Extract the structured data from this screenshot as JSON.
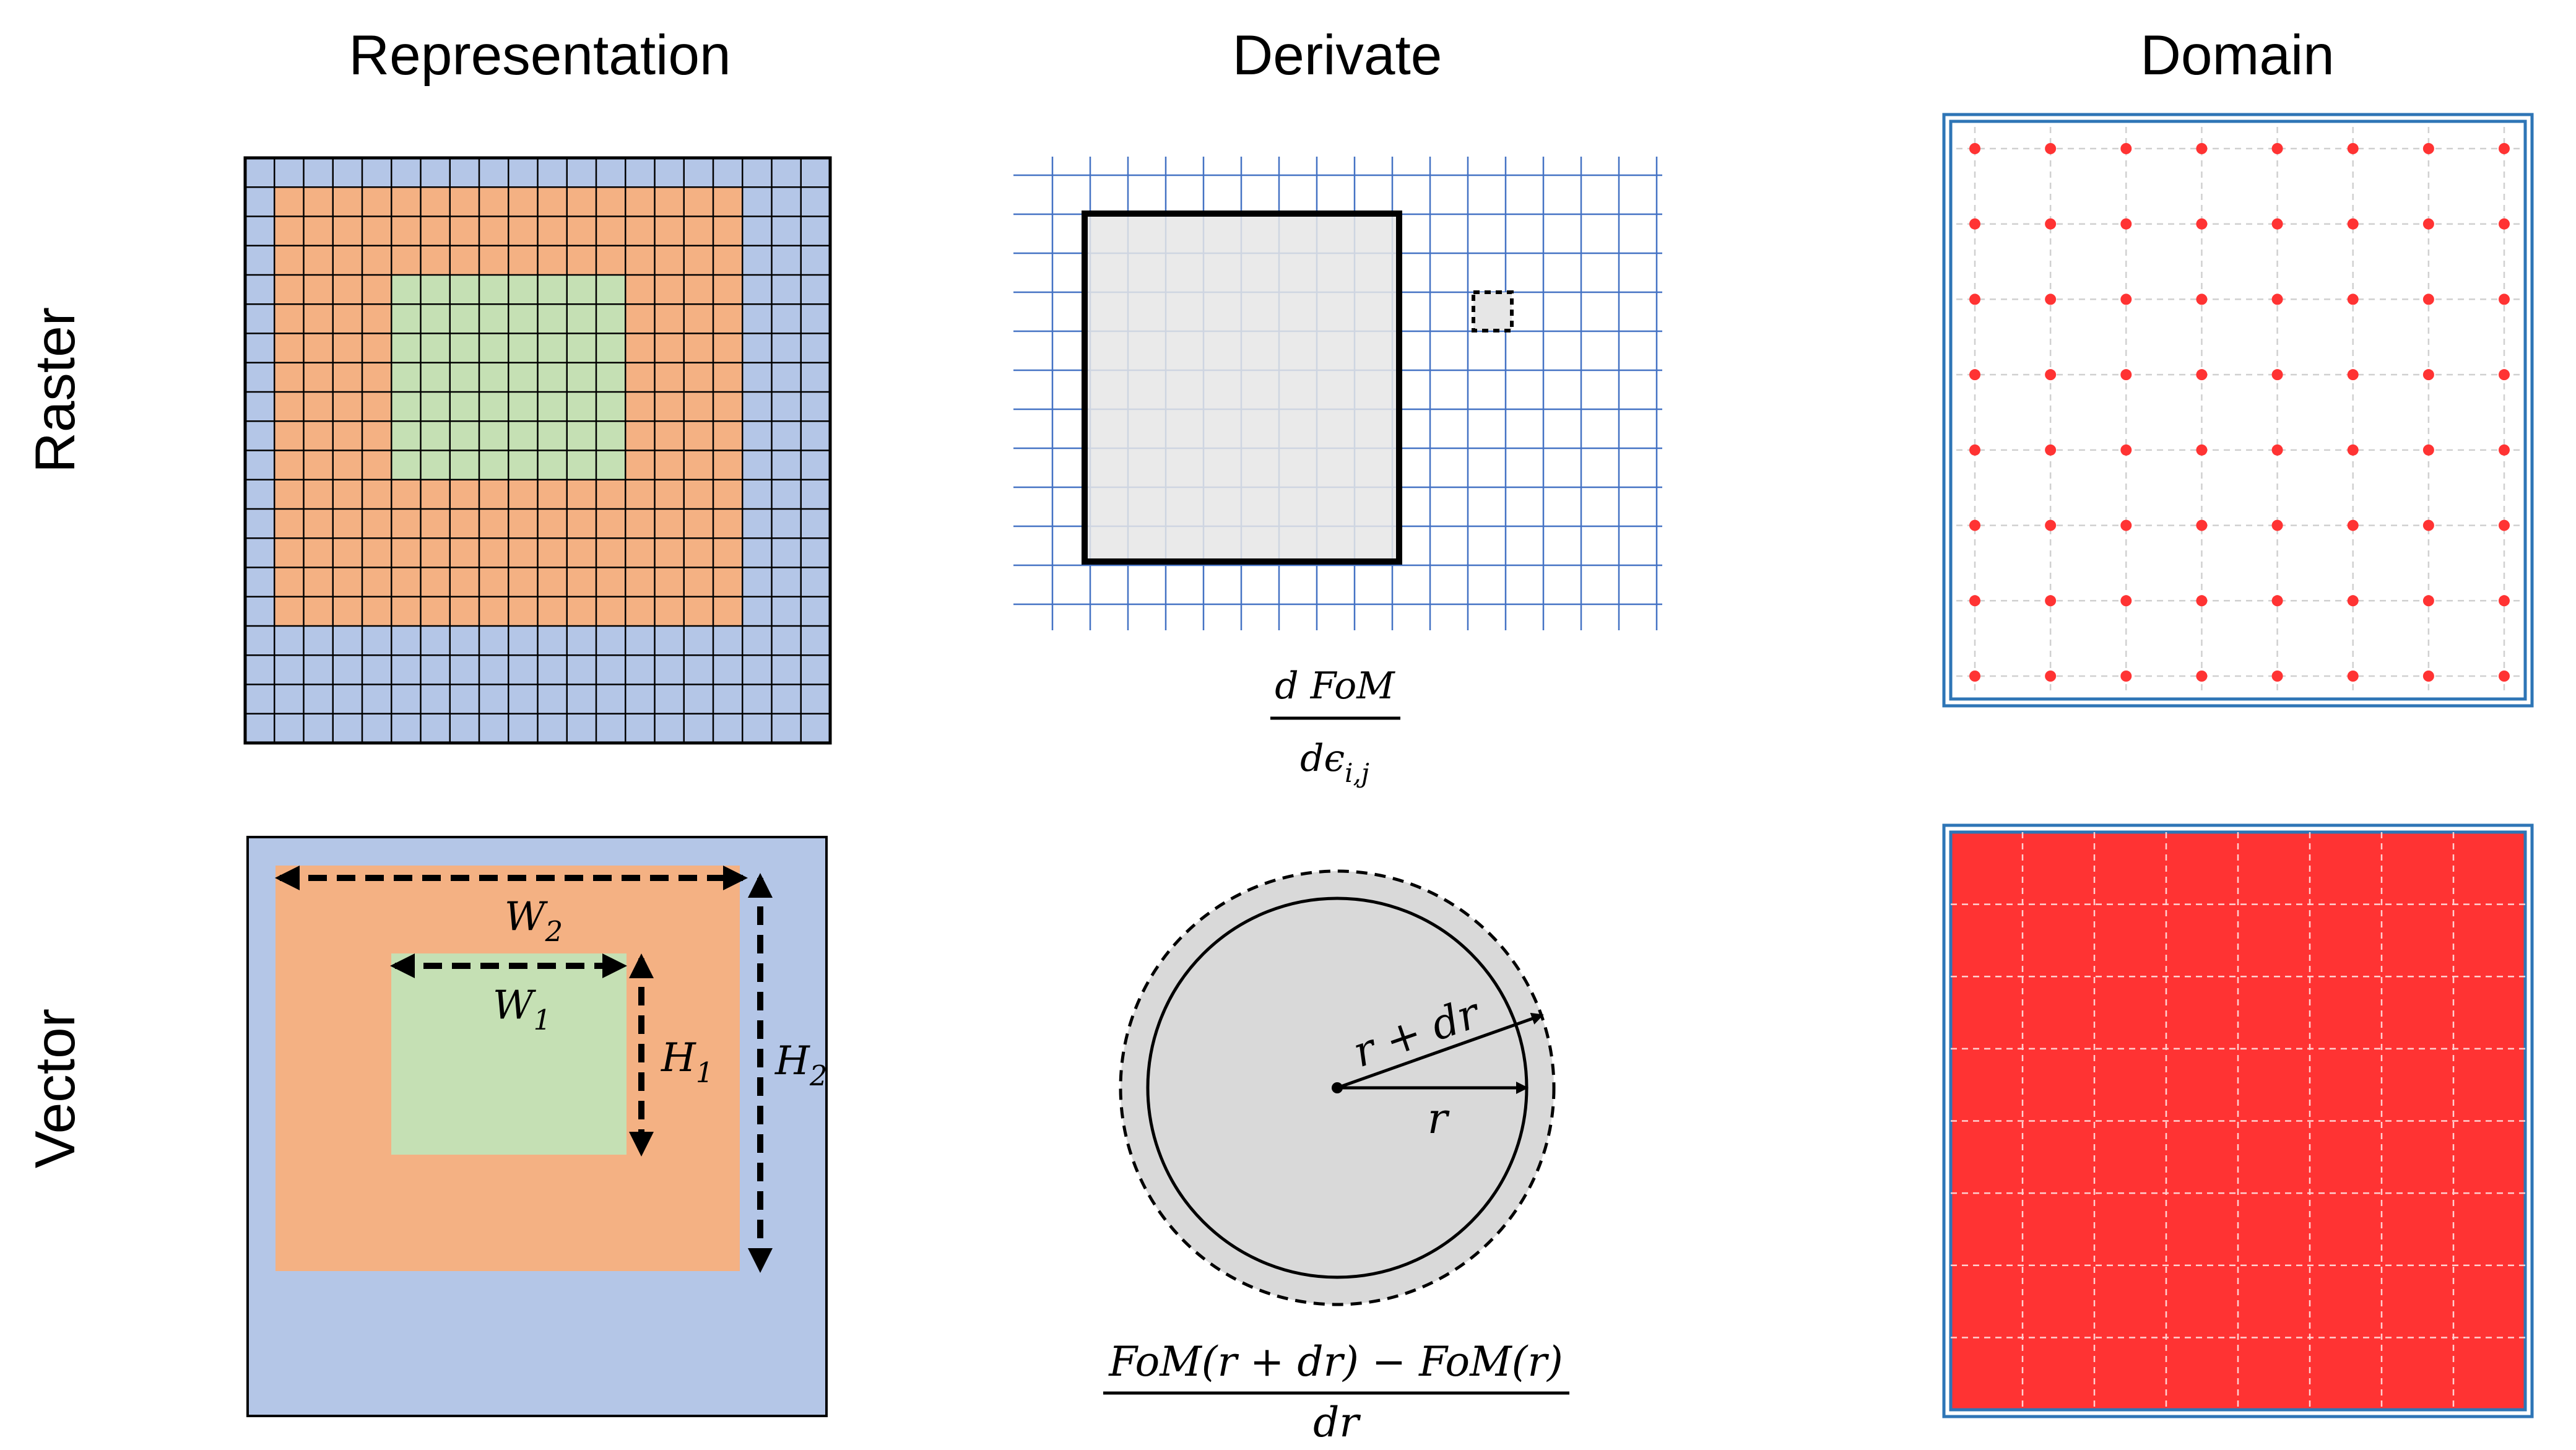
{
  "headers": {
    "columns": [
      "Representation",
      "Derivate",
      "Domain"
    ],
    "rows": [
      "Raster",
      "Vector"
    ]
  },
  "colors": {
    "blue_region": "#b4c6e7",
    "orange_region": "#f4b183",
    "green_region": "#c5e0b4",
    "grid_line_blue": "#4472c4",
    "design_gray": "#e6e6e6",
    "circle_gray": "#d9d9d9",
    "dot_red": "#ff3333",
    "domain_fill_red": "#ff3333",
    "frame_blue": "#2e75b6"
  },
  "raster_grid": {
    "cells": 20,
    "orange_cells": [
      1,
      1,
      16,
      15
    ],
    "green_cells": [
      5,
      4,
      8,
      7
    ]
  },
  "derivative_grid": {
    "cols": 17,
    "rows": 12
  },
  "domain_dots": {
    "cols": 8,
    "rows": 8
  },
  "domain_fill_grid": {
    "cols": 8,
    "rows": 8
  },
  "raster_formula": {
    "numerator": "d FoM",
    "denominator_base": "dϵ",
    "denominator_sub": "i,j"
  },
  "vector_labels": {
    "w2": {
      "base": "W",
      "sub": "2"
    },
    "w1": {
      "base": "W",
      "sub": "1"
    },
    "h1": {
      "base": "H",
      "sub": "1"
    },
    "h2": {
      "base": "H",
      "sub": "2"
    }
  },
  "circle_labels": {
    "r_dr": "r + dr",
    "r": "r"
  },
  "vector_formula": {
    "numerator": "FoM(r + dr) − FoM(r)",
    "denominator": "dr"
  }
}
